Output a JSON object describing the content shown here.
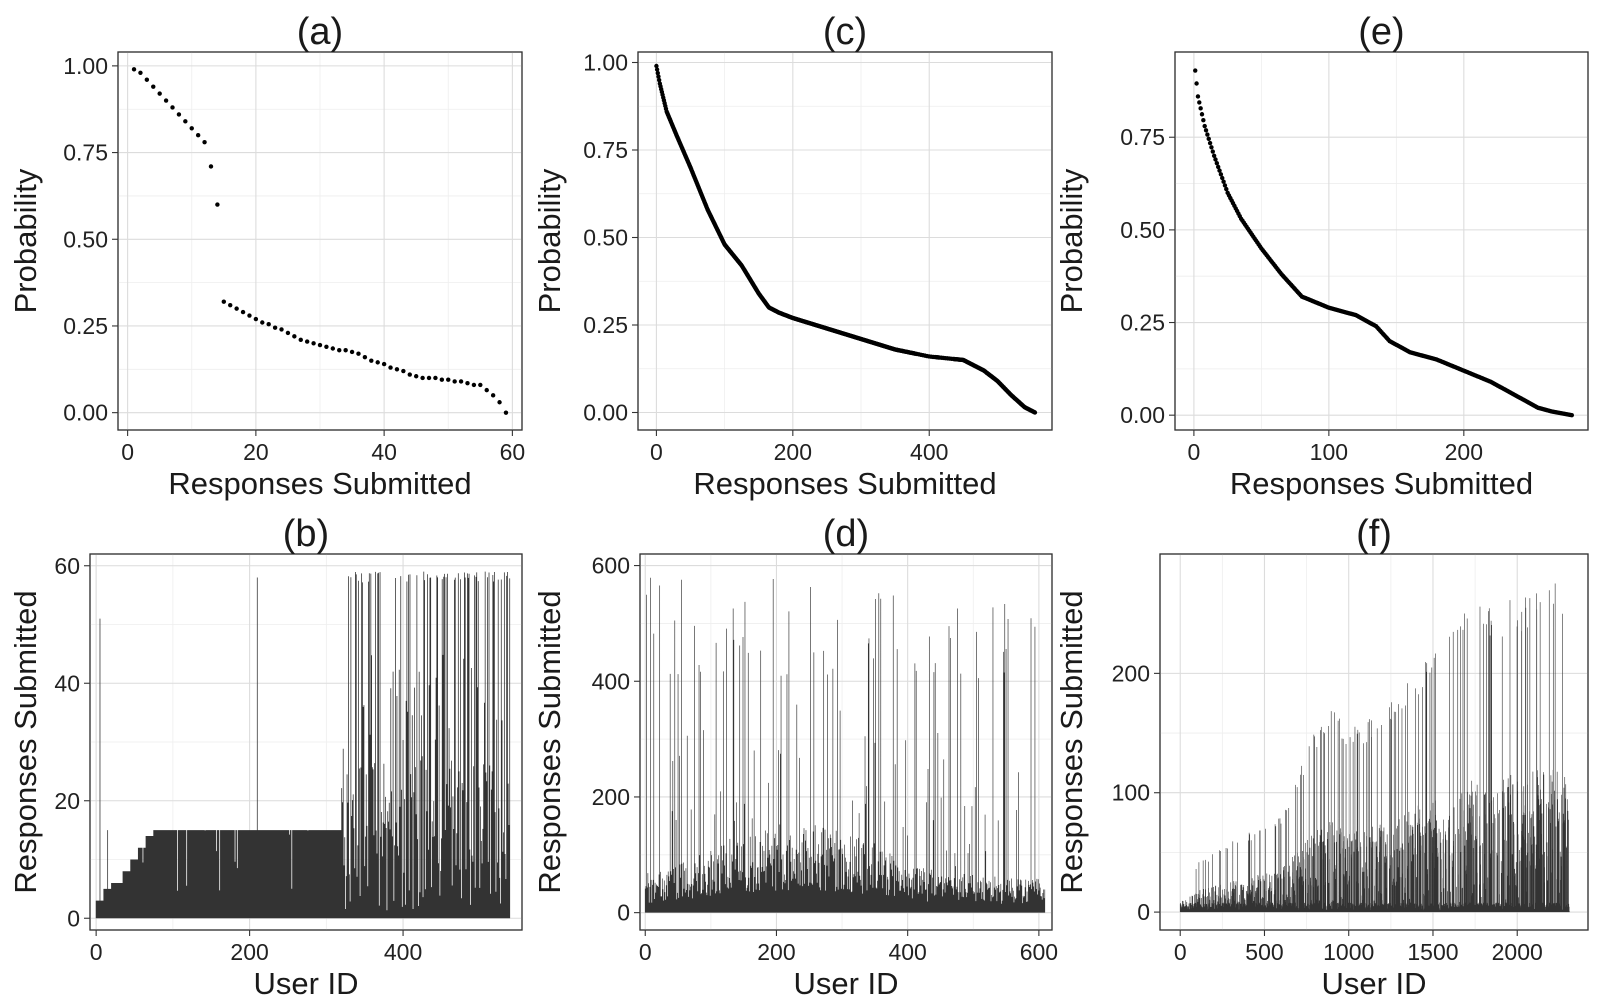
{
  "chart_data": [
    {
      "id": "a",
      "type": "scatter",
      "title": "(a)",
      "xlabel": "Responses Submitted",
      "ylabel": "Probability",
      "xlim": [
        -1.5,
        61.5
      ],
      "ylim": [
        -0.05,
        1.04
      ],
      "xticks": [
        0,
        20,
        40,
        60
      ],
      "xtick_labels": [
        "0",
        "20",
        "40",
        "60"
      ],
      "yticks": [
        0,
        0.25,
        0.5,
        0.75,
        1.0
      ],
      "ytick_labels": [
        "0.00",
        "0.25",
        "0.50",
        "0.75",
        "1.00"
      ],
      "grid": true,
      "legend": "none",
      "points": {
        "x": [
          1,
          2,
          3,
          4,
          5,
          6,
          7,
          8,
          9,
          10,
          11,
          12,
          13,
          14,
          15,
          16,
          17,
          18,
          19,
          20,
          21,
          22,
          23,
          24,
          25,
          26,
          27,
          28,
          29,
          30,
          31,
          32,
          33,
          34,
          35,
          36,
          37,
          38,
          39,
          40,
          41,
          42,
          43,
          44,
          45,
          46,
          47,
          48,
          49,
          50,
          51,
          52,
          53,
          54,
          55,
          56,
          57,
          58,
          59
        ],
        "y": [
          0.99,
          0.98,
          0.96,
          0.94,
          0.92,
          0.9,
          0.88,
          0.86,
          0.84,
          0.82,
          0.8,
          0.78,
          0.71,
          0.6,
          0.32,
          0.31,
          0.3,
          0.29,
          0.28,
          0.27,
          0.26,
          0.255,
          0.245,
          0.24,
          0.23,
          0.22,
          0.21,
          0.205,
          0.2,
          0.195,
          0.19,
          0.185,
          0.18,
          0.18,
          0.175,
          0.17,
          0.16,
          0.15,
          0.145,
          0.14,
          0.13,
          0.125,
          0.12,
          0.11,
          0.105,
          0.1,
          0.1,
          0.1,
          0.095,
          0.095,
          0.09,
          0.09,
          0.085,
          0.08,
          0.08,
          0.065,
          0.05,
          0.03,
          0.0
        ]
      }
    },
    {
      "id": "c",
      "type": "scatter",
      "title": "(c)",
      "xlabel": "Responses Submitted",
      "ylabel": "Probability",
      "xlim": [
        -27,
        580
      ],
      "ylim": [
        -0.05,
        1.03
      ],
      "xticks": [
        0,
        200,
        400
      ],
      "xtick_labels": [
        "0",
        "200",
        "400"
      ],
      "yticks": [
        0,
        0.25,
        0.5,
        0.75,
        1.0
      ],
      "ytick_labels": [
        "0.00",
        "0.25",
        "0.50",
        "0.75",
        "1.00"
      ],
      "grid": true,
      "legend": "none",
      "n_points": 555,
      "curve_knots": {
        "x": [
          0,
          5,
          15,
          30,
          50,
          75,
          100,
          125,
          150,
          165,
          180,
          200,
          250,
          300,
          350,
          400,
          450,
          480,
          500,
          520,
          540,
          555
        ],
        "y": [
          0.99,
          0.94,
          0.86,
          0.79,
          0.7,
          0.58,
          0.48,
          0.42,
          0.34,
          0.3,
          0.285,
          0.27,
          0.24,
          0.21,
          0.18,
          0.16,
          0.15,
          0.12,
          0.09,
          0.05,
          0.015,
          0.0
        ]
      },
      "gaps": [
        [
          380,
          410
        ],
        [
          415,
          435
        ]
      ]
    },
    {
      "id": "e",
      "type": "scatter",
      "title": "(e)",
      "xlabel": "Responses Submitted",
      "ylabel": "Probability",
      "xlim": [
        -14,
        292
      ],
      "ylim": [
        -0.04,
        0.98
      ],
      "xticks": [
        0,
        100,
        200
      ],
      "xtick_labels": [
        "0",
        "100",
        "200"
      ],
      "yticks": [
        0,
        0.25,
        0.5,
        0.75
      ],
      "ytick_labels": [
        "0.00",
        "0.25",
        "0.50",
        "0.75"
      ],
      "grid": true,
      "legend": "none",
      "n_points": 280,
      "curve_knots": {
        "x": [
          1,
          3,
          8,
          15,
          25,
          35,
          50,
          65,
          80,
          100,
          120,
          135,
          145,
          160,
          180,
          200,
          220,
          240,
          255,
          265,
          280
        ],
        "y": [
          0.93,
          0.86,
          0.78,
          0.7,
          0.6,
          0.53,
          0.45,
          0.38,
          0.32,
          0.29,
          0.27,
          0.24,
          0.2,
          0.17,
          0.15,
          0.12,
          0.09,
          0.05,
          0.02,
          0.01,
          0.0
        ]
      }
    },
    {
      "id": "b",
      "type": "bar",
      "title": "(b)",
      "xlabel": "User ID",
      "ylabel": "Responses Submitted",
      "xlim": [
        -8,
        555
      ],
      "ylim": [
        -2,
        62
      ],
      "xticks": [
        0,
        200,
        400
      ],
      "xtick_labels": [
        "0",
        "200",
        "400"
      ],
      "yticks": [
        0,
        20,
        40,
        60
      ],
      "ytick_labels": [
        "0",
        "20",
        "40",
        "60"
      ],
      "grid": true,
      "legend": "none",
      "n_bars": 540,
      "baseline_steps": {
        "x": [
          0,
          10,
          20,
          35,
          45,
          55,
          65,
          75,
          310,
          320,
          330
        ],
        "y": [
          3,
          5,
          6,
          8,
          10,
          12,
          14,
          15,
          15,
          18,
          22
        ]
      },
      "spikes": {
        "x": [
          5,
          15,
          210
        ],
        "y": [
          51,
          15,
          58
        ]
      },
      "max_value": 59
    },
    {
      "id": "d",
      "type": "bar",
      "title": "(d)",
      "xlabel": "User ID",
      "ylabel": "Responses Submitted",
      "xlim": [
        -8,
        620
      ],
      "ylim": [
        -30,
        620
      ],
      "xticks": [
        0,
        200,
        400,
        600
      ],
      "xtick_labels": [
        "0",
        "200",
        "400",
        "600"
      ],
      "yticks": [
        0,
        200,
        400,
        600
      ],
      "ytick_labels": [
        "0",
        "200",
        "400",
        "600"
      ],
      "grid": true,
      "legend": "none",
      "n_bars": 610,
      "baseline_envelope": {
        "x": [
          0,
          50,
          100,
          150,
          200,
          250,
          300,
          350,
          400,
          450,
          500,
          550,
          600,
          610
        ],
        "y": [
          50,
          70,
          90,
          110,
          120,
          130,
          120,
          100,
          70,
          60,
          60,
          50,
          50,
          50
        ]
      },
      "max_value": 580
    },
    {
      "id": "f",
      "type": "bar",
      "title": "(f)",
      "xlabel": "User ID",
      "ylabel": "Responses Submitted",
      "xlim": [
        -120,
        2420
      ],
      "ylim": [
        -15,
        300
      ],
      "xticks": [
        0,
        500,
        1000,
        1500,
        2000
      ],
      "xtick_labels": [
        "0",
        "500",
        "1000",
        "1500",
        "2000"
      ],
      "yticks": [
        0,
        100,
        200
      ],
      "ytick_labels": [
        "0",
        "100",
        "200"
      ],
      "grid": true,
      "legend": "none",
      "n_bars": 2310,
      "spike_envelope": {
        "x": [
          0,
          100,
          200,
          400,
          600,
          800,
          900,
          1000,
          1200,
          1400,
          1500,
          1700,
          1900,
          2100,
          2300
        ],
        "y": [
          20,
          40,
          50,
          65,
          80,
          150,
          170,
          150,
          165,
          200,
          210,
          250,
          255,
          265,
          275
        ]
      },
      "max_value": 283
    }
  ]
}
